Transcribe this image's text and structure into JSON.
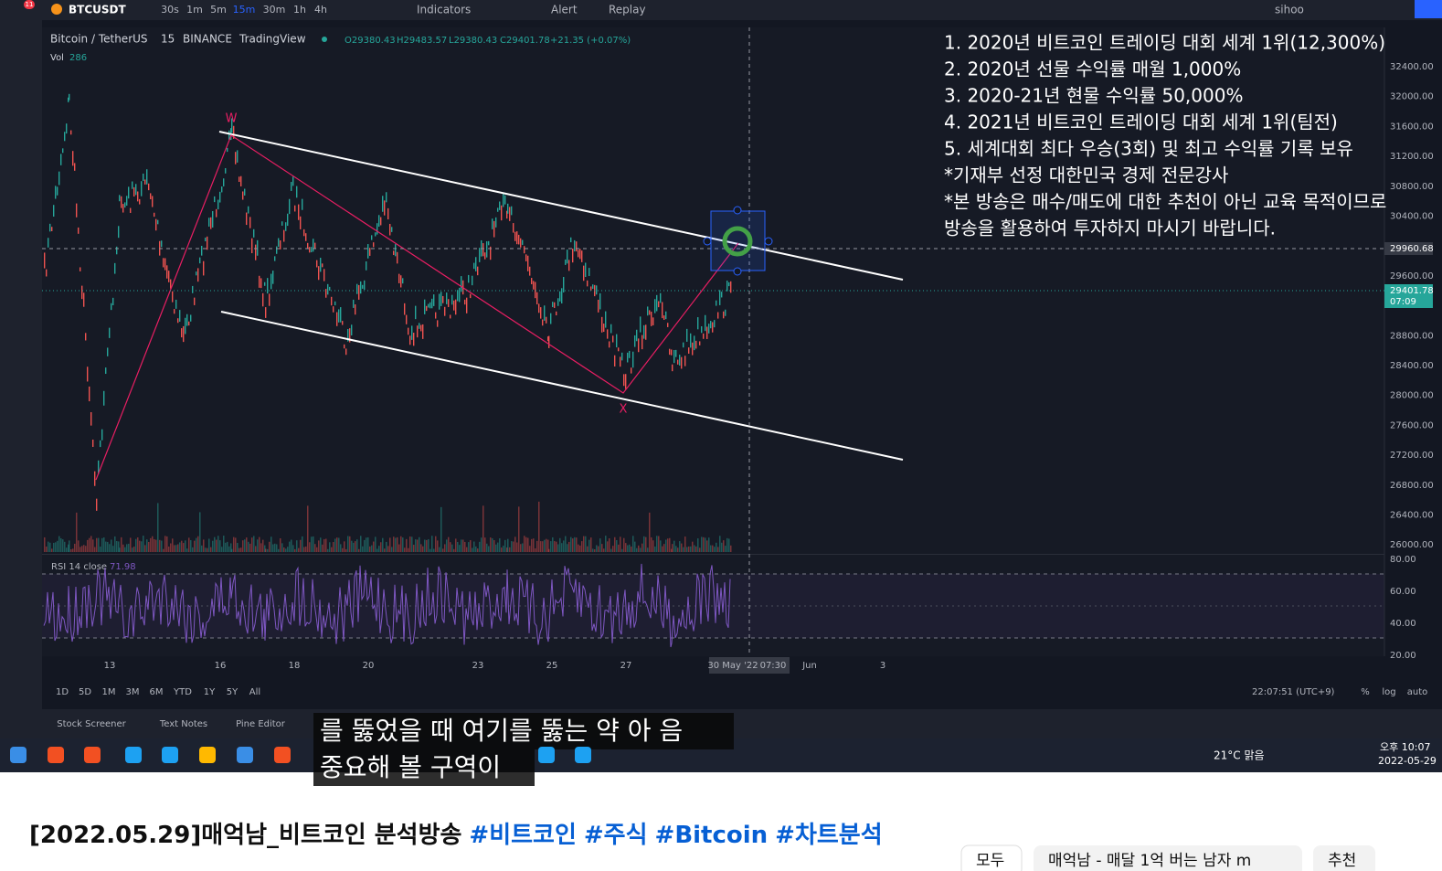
{
  "toolbar": {
    "badge": "11",
    "symbol": "BTCUSDT",
    "intervals": [
      "30s",
      "1m",
      "5m",
      "15m",
      "30m",
      "1h",
      "4h"
    ],
    "indicators": "Indicators",
    "alert": "Alert",
    "replay": "Replay",
    "user": "sihoo"
  },
  "legend": {
    "pair": "Bitcoin / TetherUS",
    "interval": "15",
    "exchange": "BINANCE",
    "source": "TradingView",
    "ohlc": [
      "O29380.43",
      "H29483.57",
      "L29380.43",
      "C29401.78"
    ],
    "change": "+21.35 (+0.07%)",
    "volume_label": "Vol",
    "volume": "286"
  },
  "overlay_lines": [
    "1. 2020년 비트코인 트레이딩 대회 세계 1위(12,300%)",
    "2. 2020년 선물 수익률 매월 1,000%",
    "3. 2020-21년 현물 수익률 50,000%",
    "4. 2021년 비트코인 트레이딩 대회 세계 1위(팀전)",
    "5. 세계대회 최다 우승(3회) 및 최고 수익률 기록 보유",
    "*기재부 선정 대한민국 경제 전문강사",
    "*본 방송은 매수/매도에 대한 추천이 아닌 교육 목적이므로",
    " 방송을 활용하여 투자하지 마시기 바랍니다."
  ],
  "wave_labels": [
    "W",
    "X"
  ],
  "price_axis": [
    "32400.00",
    "32000.00",
    "31600.00",
    "31200.00",
    "30800.00",
    "30400.00",
    "29600.00",
    "28800.00",
    "28400.00",
    "28000.00",
    "27600.00",
    "27200.00",
    "26800.00",
    "26400.00",
    "26000.00"
  ],
  "price_tags": {
    "crosshair": "29960.68",
    "last": "29401.78",
    "countdown": "07:09"
  },
  "rsi": {
    "label": "RSI 14 close",
    "value": "71.98",
    "axis": [
      "80.00",
      "60.00",
      "40.00",
      "20.00"
    ]
  },
  "date_axis": [
    "13",
    "16",
    "18",
    "20",
    "23",
    "25",
    "27",
    "30 May '22",
    "07:30",
    "Jun",
    "3"
  ],
  "ranges": [
    "1D",
    "5D",
    "1M",
    "3M",
    "6M",
    "YTD",
    "1Y",
    "5Y",
    "All"
  ],
  "clock": "22:07:51 (UTC+9)",
  "scale_options": [
    "%",
    "log",
    "auto"
  ],
  "bottom_tabs": [
    "Stock Screener",
    "Text Notes",
    "Pine Editor"
  ],
  "subtitles": [
    "를 뚫었을 때 여기를 뚫는 약 아 음",
    "중요해 볼 구역이"
  ],
  "taskbar": {
    "weather": "21°C 맑음",
    "time": "오후 10:07",
    "date": "2022-05-29"
  },
  "video": {
    "title": "[2022.05.29]매억남_비트코인 분석방송",
    "hashtags": [
      "#비트코인",
      "#주식",
      "#Bitcoin",
      "#차트분석"
    ],
    "chips": [
      "모두",
      "매억남 - 매달 1억 버는 남자 m",
      "추천"
    ]
  }
}
